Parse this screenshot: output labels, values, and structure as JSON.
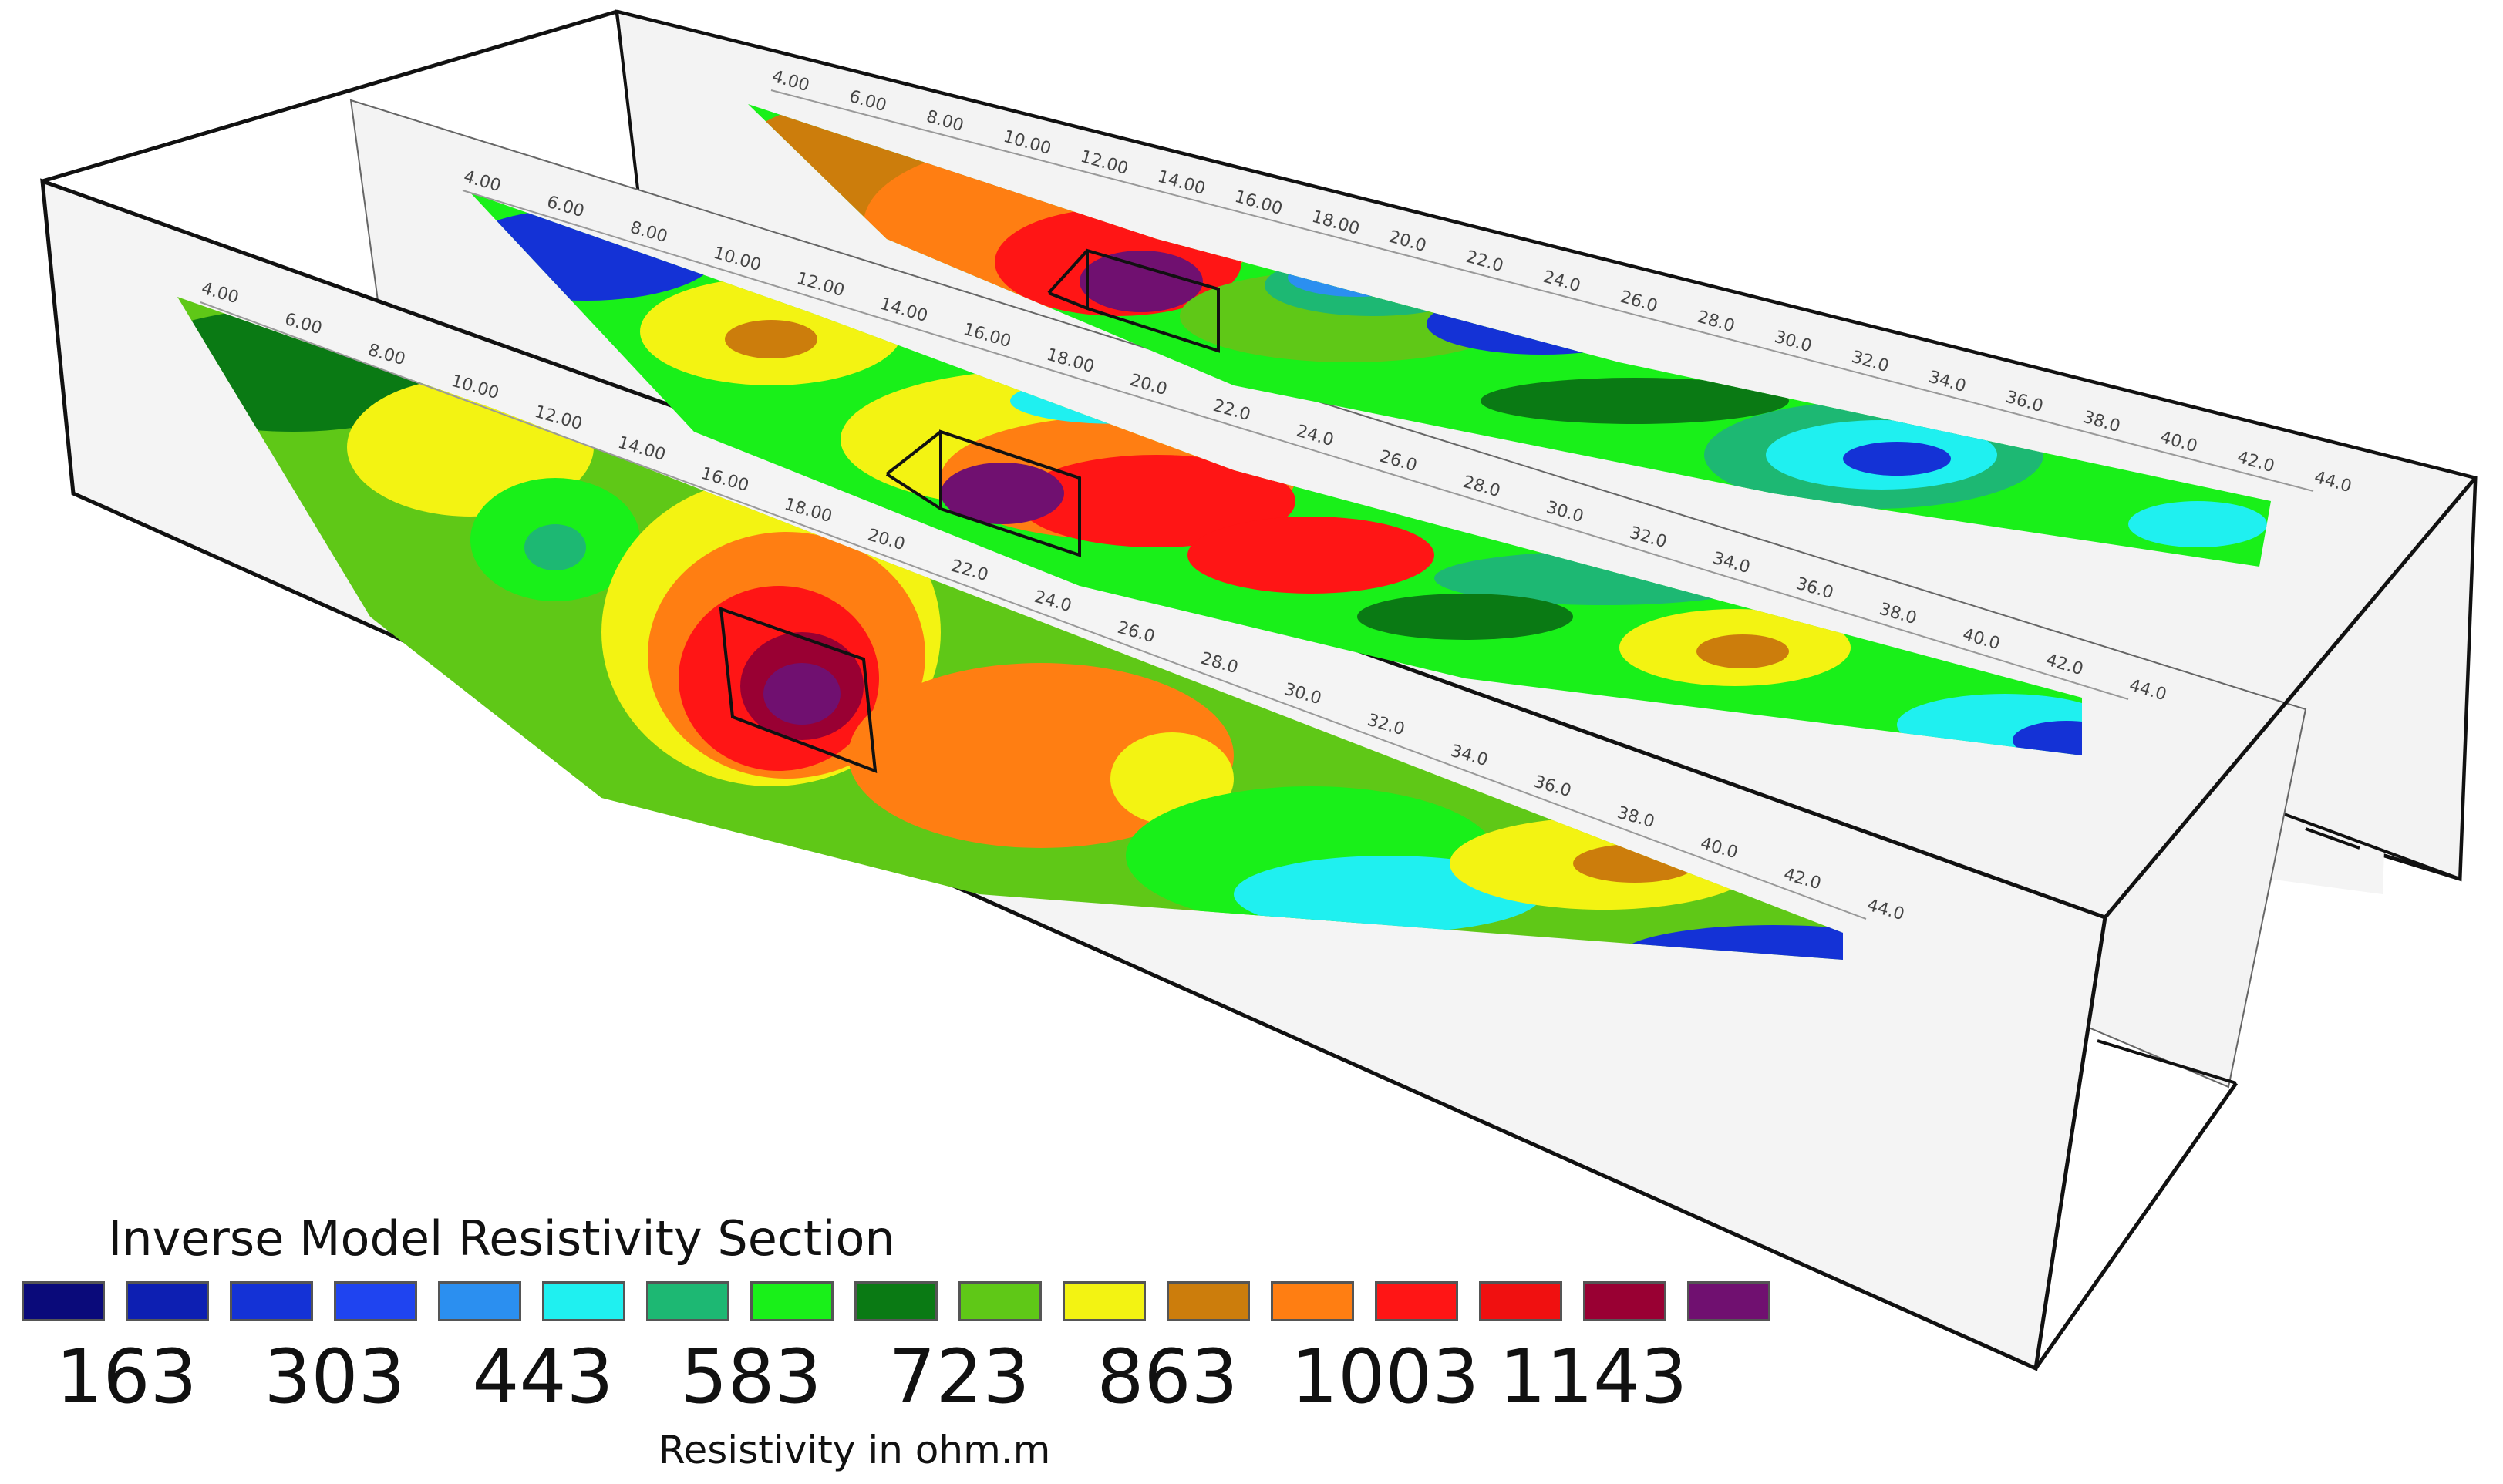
{
  "legend": {
    "title": "Inverse Model Resistivity Section",
    "unit_label": "Resistivity in ohm.m",
    "colors": [
      "#0a0a7a",
      "#0d1fb2",
      "#1432d6",
      "#1f44f0",
      "#2b8ff0",
      "#1ff0f0",
      "#1db873",
      "#19f019",
      "#0a7a14",
      "#5fc817",
      "#f3f312",
      "#cc7d0c",
      "#ff7e12",
      "#ff1515",
      "#f01010",
      "#990033",
      "#701070"
    ],
    "values": [
      "163",
      "303",
      "443",
      "583",
      "723",
      "863",
      "1003",
      "1143"
    ]
  },
  "sections": [
    {
      "name": "front-section",
      "axis_labels": [
        "4.00",
        "6.00",
        "8.00",
        "10.00",
        "12.00",
        "14.00",
        "16.00",
        "18.00",
        "20.0",
        "22.0",
        "24.0",
        "26.0",
        "28.0",
        "30.0",
        "32.0",
        "34.0",
        "36.0",
        "38.0",
        "40.0",
        "42.0",
        "44.0"
      ]
    },
    {
      "name": "middle-section",
      "axis_labels": [
        "4.00",
        "6.00",
        "8.00",
        "10.00",
        "12.00",
        "14.00",
        "16.00",
        "18.00",
        "20.0",
        "22.0",
        "24.0",
        "26.0",
        "28.0",
        "30.0",
        "32.0",
        "34.0",
        "36.0",
        "38.0",
        "40.0",
        "42.0",
        "44.0"
      ]
    },
    {
      "name": "back-section",
      "axis_labels": [
        "4.00",
        "6.00",
        "8.00",
        "10.00",
        "12.00",
        "14.00",
        "16.00",
        "18.00",
        "20.0",
        "22.0",
        "24.0",
        "26.0",
        "28.0",
        "30.0",
        "32.0",
        "34.0",
        "36.0",
        "38.0",
        "40.0",
        "42.0",
        "44.0"
      ]
    }
  ]
}
